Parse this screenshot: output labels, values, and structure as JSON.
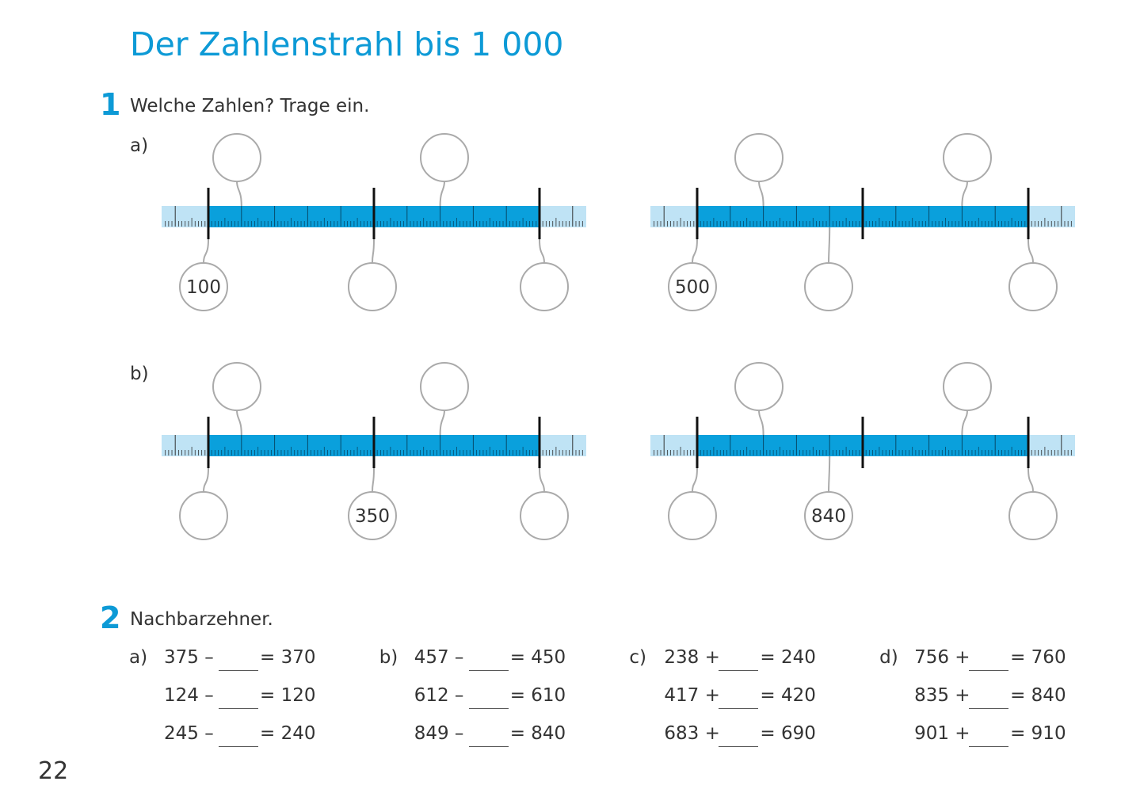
{
  "header": {
    "title": "Der Zahlenstrahl bis 1 000"
  },
  "task1": {
    "number": "1",
    "instruction": "Welche Zahlen? Trage ein.",
    "parts": [
      {
        "label": "a)",
        "given": [
          "100",
          "500"
        ]
      },
      {
        "label": "b)",
        "given": [
          "350",
          "840"
        ]
      }
    ]
  },
  "task2": {
    "number": "2",
    "instruction": "Nachbarzehner.",
    "columns": [
      {
        "label": "a)",
        "rows": [
          [
            "375 –",
            "= 370"
          ],
          [
            "124 –",
            "= 120"
          ],
          [
            "245 –",
            "= 240"
          ]
        ]
      },
      {
        "label": "b)",
        "rows": [
          [
            "457 –",
            "= 450"
          ],
          [
            "612 –",
            "= 610"
          ],
          [
            "849 –",
            "= 840"
          ]
        ]
      },
      {
        "label": "c)",
        "rows": [
          [
            "238 +",
            "= 240"
          ],
          [
            "417 +",
            "= 420"
          ],
          [
            "683 +",
            "= 690"
          ]
        ]
      },
      {
        "label": "d)",
        "rows": [
          [
            "756 +",
            "= 760"
          ],
          [
            "835 +",
            "= 840"
          ],
          [
            "901 +",
            "= 910"
          ]
        ]
      }
    ]
  },
  "footer": {
    "page_number": "22"
  }
}
